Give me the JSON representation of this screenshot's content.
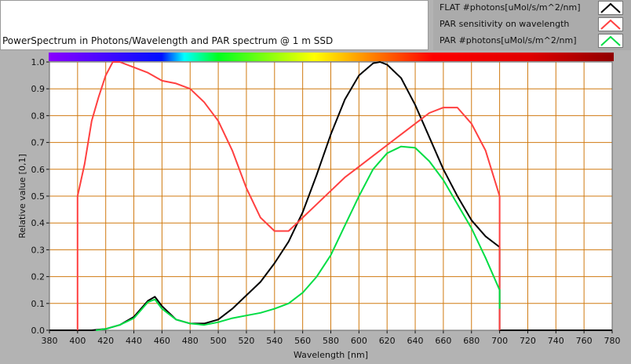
{
  "chart_data": {
    "type": "line",
    "title": "PowerSpectrum in Photons/Wavelength and PAR spectrum @ 1 m SSD",
    "xlabel": "Wavelength [nm]",
    "ylabel": "Relative value [0,1]",
    "xlim": [
      380,
      780
    ],
    "ylim": [
      0,
      1
    ],
    "xticks": [
      "380",
      "400",
      "420",
      "440",
      "460",
      "480",
      "500",
      "520",
      "540",
      "560",
      "580",
      "600",
      "620",
      "640",
      "660",
      "680",
      "700",
      "720",
      "740",
      "760",
      "780"
    ],
    "yticks": [
      "0.0",
      "0.1",
      "0.2",
      "0.3",
      "0.4",
      "0.5",
      "0.6",
      "0.7",
      "0.8",
      "0.9",
      "1.0"
    ],
    "grid": true,
    "legend_position": "top-right",
    "series": [
      {
        "name": "FLAT #photons[uMol/s/m^2/nm]",
        "color": "#000000",
        "x": [
          380,
          410,
          420,
          430,
          440,
          450,
          455,
          460,
          470,
          480,
          490,
          500,
          510,
          520,
          530,
          540,
          550,
          560,
          570,
          580,
          590,
          600,
          610,
          615,
          620,
          630,
          640,
          650,
          660,
          670,
          680,
          690,
          700,
          700,
          780
        ],
        "y": [
          0,
          0,
          0.005,
          0.02,
          0.05,
          0.11,
          0.125,
          0.09,
          0.04,
          0.025,
          0.025,
          0.04,
          0.08,
          0.13,
          0.18,
          0.25,
          0.33,
          0.44,
          0.58,
          0.73,
          0.86,
          0.95,
          0.995,
          1.0,
          0.99,
          0.94,
          0.84,
          0.72,
          0.6,
          0.5,
          0.41,
          0.35,
          0.31,
          0,
          0
        ]
      },
      {
        "name": "PAR sensitivity on wavelength",
        "color": "#ff4040",
        "x": [
          400,
          400,
          405,
          410,
          415,
          420,
          425,
          430,
          440,
          450,
          460,
          470,
          480,
          490,
          500,
          510,
          520,
          530,
          540,
          550,
          560,
          570,
          580,
          590,
          600,
          610,
          620,
          630,
          640,
          650,
          660,
          670,
          680,
          690,
          700,
          700
        ],
        "y": [
          0,
          0.5,
          0.62,
          0.78,
          0.87,
          0.95,
          1.0,
          1.0,
          0.98,
          0.96,
          0.93,
          0.92,
          0.9,
          0.85,
          0.78,
          0.67,
          0.53,
          0.42,
          0.37,
          0.37,
          0.42,
          0.47,
          0.52,
          0.57,
          0.61,
          0.65,
          0.69,
          0.73,
          0.77,
          0.81,
          0.83,
          0.83,
          0.77,
          0.67,
          0.5,
          0
        ]
      },
      {
        "name": "PAR #photons[uMol/s/m^2/nm]",
        "color": "#00dd44",
        "x": [
          413,
          420,
          430,
          440,
          450,
          455,
          460,
          470,
          480,
          490,
          500,
          510,
          520,
          530,
          540,
          550,
          560,
          570,
          580,
          590,
          600,
          610,
          620,
          630,
          640,
          650,
          660,
          670,
          680,
          690,
          700,
          700
        ],
        "y": [
          0,
          0.005,
          0.02,
          0.045,
          0.105,
          0.115,
          0.08,
          0.04,
          0.025,
          0.02,
          0.03,
          0.045,
          0.055,
          0.065,
          0.08,
          0.1,
          0.14,
          0.2,
          0.28,
          0.39,
          0.5,
          0.6,
          0.66,
          0.685,
          0.68,
          0.63,
          0.56,
          0.47,
          0.38,
          0.27,
          0.15,
          0.08
        ]
      }
    ]
  }
}
